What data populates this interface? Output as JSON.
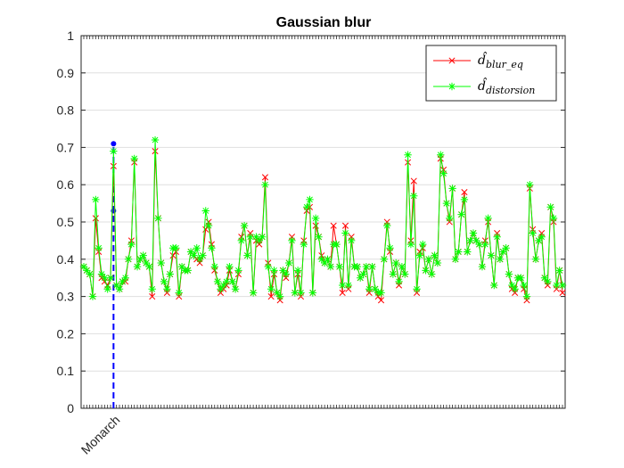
{
  "chart_data": {
    "type": "line",
    "title": "Gaussian blur",
    "xlabel": "",
    "ylabel": "",
    "ylim": [
      0,
      1
    ],
    "yticks": [
      "0",
      "0.1",
      "0.2",
      "0.3",
      "0.4",
      "0.5",
      "0.6",
      "0.7",
      "0.8",
      "0.9",
      "1"
    ],
    "x_tick_label": "Monarch",
    "x_tick_index": 10,
    "n_points": 162,
    "grid": "horizontal",
    "legend_location": "top-right",
    "marker_line": {
      "x_index": 10,
      "y_from": 0,
      "y_to": 0.71,
      "points": [
        0.53,
        0.71
      ],
      "color": "#0000ff",
      "style": "dashed"
    },
    "series": [
      {
        "name": "d̂_blur_eq",
        "legend_main": "d̂",
        "legend_sub": "blur_eq",
        "color": "#ff0000",
        "marker": "x",
        "values": [
          0.38,
          0.37,
          0.36,
          0.3,
          0.51,
          0.42,
          0.35,
          0.34,
          0.33,
          0.35,
          0.65,
          0.33,
          0.32,
          0.34,
          0.34,
          0.4,
          0.45,
          0.66,
          0.38,
          0.4,
          0.41,
          0.39,
          0.38,
          0.3,
          0.69,
          0.51,
          0.39,
          0.34,
          0.31,
          0.36,
          0.41,
          0.42,
          0.3,
          0.38,
          0.37,
          0.37,
          0.42,
          0.41,
          0.4,
          0.39,
          0.41,
          0.48,
          0.5,
          0.44,
          0.37,
          0.34,
          0.31,
          0.32,
          0.33,
          0.37,
          0.34,
          0.32,
          0.36,
          0.46,
          0.49,
          0.41,
          0.47,
          0.31,
          0.45,
          0.44,
          0.46,
          0.62,
          0.39,
          0.3,
          0.36,
          0.31,
          0.29,
          0.37,
          0.35,
          0.39,
          0.46,
          0.31,
          0.36,
          0.3,
          0.45,
          0.53,
          0.54,
          0.31,
          0.49,
          0.46,
          0.41,
          0.39,
          0.4,
          0.38,
          0.49,
          0.44,
          0.38,
          0.31,
          0.49,
          0.32,
          0.46,
          0.38,
          0.38,
          0.35,
          0.36,
          0.38,
          0.31,
          0.38,
          0.32,
          0.3,
          0.29,
          0.4,
          0.5,
          0.42,
          0.36,
          0.39,
          0.33,
          0.38,
          0.36,
          0.66,
          0.45,
          0.61,
          0.31,
          0.42,
          0.43,
          0.37,
          0.4,
          0.36,
          0.41,
          0.39,
          0.67,
          0.64,
          0.55,
          0.5,
          0.59,
          0.4,
          0.42,
          0.52,
          0.58,
          0.42,
          0.45,
          0.47,
          0.45,
          0.44,
          0.38,
          0.45,
          0.5,
          0.41,
          0.33,
          0.47,
          0.4,
          0.42,
          0.43,
          0.36,
          0.32,
          0.31,
          0.35,
          0.35,
          0.32,
          0.29,
          0.59,
          0.48,
          0.4,
          0.45,
          0.47,
          0.35,
          0.33,
          0.54,
          0.5,
          0.32,
          0.37,
          0.31
        ]
      },
      {
        "name": "d̂_distorsion",
        "legend_main": "d̂",
        "legend_sub": "distorsion",
        "color": "#00ff00",
        "marker": "*",
        "values": [
          0.38,
          0.37,
          0.36,
          0.3,
          0.56,
          0.43,
          0.36,
          0.35,
          0.32,
          0.35,
          0.69,
          0.33,
          0.32,
          0.34,
          0.35,
          0.4,
          0.44,
          0.67,
          0.38,
          0.4,
          0.41,
          0.39,
          0.38,
          0.32,
          0.72,
          0.51,
          0.39,
          0.34,
          0.32,
          0.36,
          0.43,
          0.43,
          0.31,
          0.38,
          0.37,
          0.37,
          0.42,
          0.41,
          0.43,
          0.4,
          0.41,
          0.53,
          0.49,
          0.43,
          0.38,
          0.34,
          0.32,
          0.33,
          0.34,
          0.38,
          0.34,
          0.32,
          0.37,
          0.45,
          0.49,
          0.41,
          0.46,
          0.31,
          0.46,
          0.45,
          0.46,
          0.6,
          0.38,
          0.32,
          0.37,
          0.31,
          0.3,
          0.37,
          0.36,
          0.39,
          0.45,
          0.31,
          0.37,
          0.31,
          0.44,
          0.54,
          0.56,
          0.31,
          0.51,
          0.46,
          0.4,
          0.39,
          0.4,
          0.38,
          0.44,
          0.44,
          0.38,
          0.33,
          0.47,
          0.33,
          0.45,
          0.38,
          0.38,
          0.35,
          0.36,
          0.38,
          0.32,
          0.38,
          0.32,
          0.31,
          0.31,
          0.4,
          0.49,
          0.43,
          0.36,
          0.39,
          0.34,
          0.38,
          0.36,
          0.68,
          0.44,
          0.57,
          0.32,
          0.41,
          0.44,
          0.37,
          0.4,
          0.36,
          0.41,
          0.39,
          0.68,
          0.63,
          0.55,
          0.51,
          0.59,
          0.4,
          0.42,
          0.52,
          0.56,
          0.42,
          0.45,
          0.47,
          0.45,
          0.44,
          0.38,
          0.44,
          0.51,
          0.41,
          0.33,
          0.46,
          0.4,
          0.42,
          0.43,
          0.36,
          0.33,
          0.32,
          0.35,
          0.35,
          0.33,
          0.3,
          0.6,
          0.47,
          0.4,
          0.45,
          0.46,
          0.35,
          0.34,
          0.54,
          0.51,
          0.33,
          0.37,
          0.33
        ]
      }
    ]
  }
}
